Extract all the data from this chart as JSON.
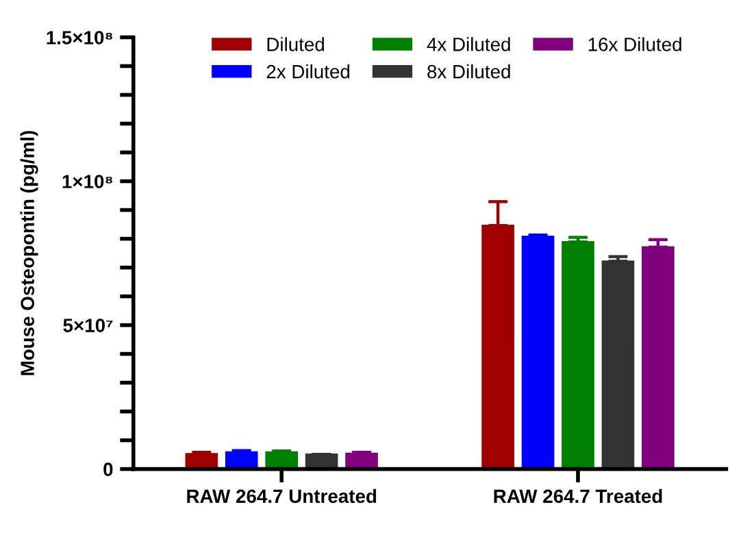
{
  "chart_data": {
    "type": "bar",
    "ylabel": "Mouse Osteopontin (pg/ml)",
    "categories": [
      "RAW 264.7 Untreated",
      "RAW 264.7 Treated"
    ],
    "series": [
      {
        "name": "Diluted",
        "color": "#a00000",
        "values": [
          5300000,
          84600000
        ],
        "errors": [
          [
            5300000,
            5800000
          ],
          [
            84600000,
            92900000
          ]
        ]
      },
      {
        "name": "2x Diluted",
        "color": "#0000ff",
        "values": [
          5900000,
          80800000
        ],
        "errors": [
          [
            5900000,
            6400000
          ],
          [
            80800000,
            81300000
          ]
        ]
      },
      {
        "name": "4x Diluted",
        "color": "#008000",
        "values": [
          5900000,
          78900000
        ],
        "errors": [
          [
            5900000,
            6300000
          ],
          [
            78900000,
            80500000
          ]
        ]
      },
      {
        "name": "8x Diluted",
        "color": "#333333",
        "values": [
          5100000,
          72200000
        ],
        "errors": [
          [
            5100000,
            5100000
          ],
          [
            72200000,
            73800000
          ]
        ]
      },
      {
        "name": "16x Diluted",
        "color": "#800080",
        "values": [
          5400000,
          77100000
        ],
        "errors": [
          [
            5400000,
            5800000
          ],
          [
            77100000,
            79700000
          ]
        ]
      }
    ],
    "ylim": [
      0,
      150000000
    ],
    "yticks": [
      {
        "value": 0,
        "label": "0"
      },
      {
        "value": 10000000,
        "label": null
      },
      {
        "value": 20000000,
        "label": null
      },
      {
        "value": 30000000,
        "label": null
      },
      {
        "value": 40000000,
        "label": null
      },
      {
        "value": 50000000,
        "label": "5×10⁷"
      },
      {
        "value": 60000000,
        "label": null
      },
      {
        "value": 70000000,
        "label": null
      },
      {
        "value": 80000000,
        "label": null
      },
      {
        "value": 90000000,
        "label": null
      },
      {
        "value": 100000000,
        "label": "1×10⁸"
      },
      {
        "value": 110000000,
        "label": null
      },
      {
        "value": 120000000,
        "label": null
      },
      {
        "value": 130000000,
        "label": null
      },
      {
        "value": 140000000,
        "label": null
      },
      {
        "value": 150000000,
        "label": "1.5×10⁸"
      }
    ],
    "legend": "top",
    "grid": false
  }
}
